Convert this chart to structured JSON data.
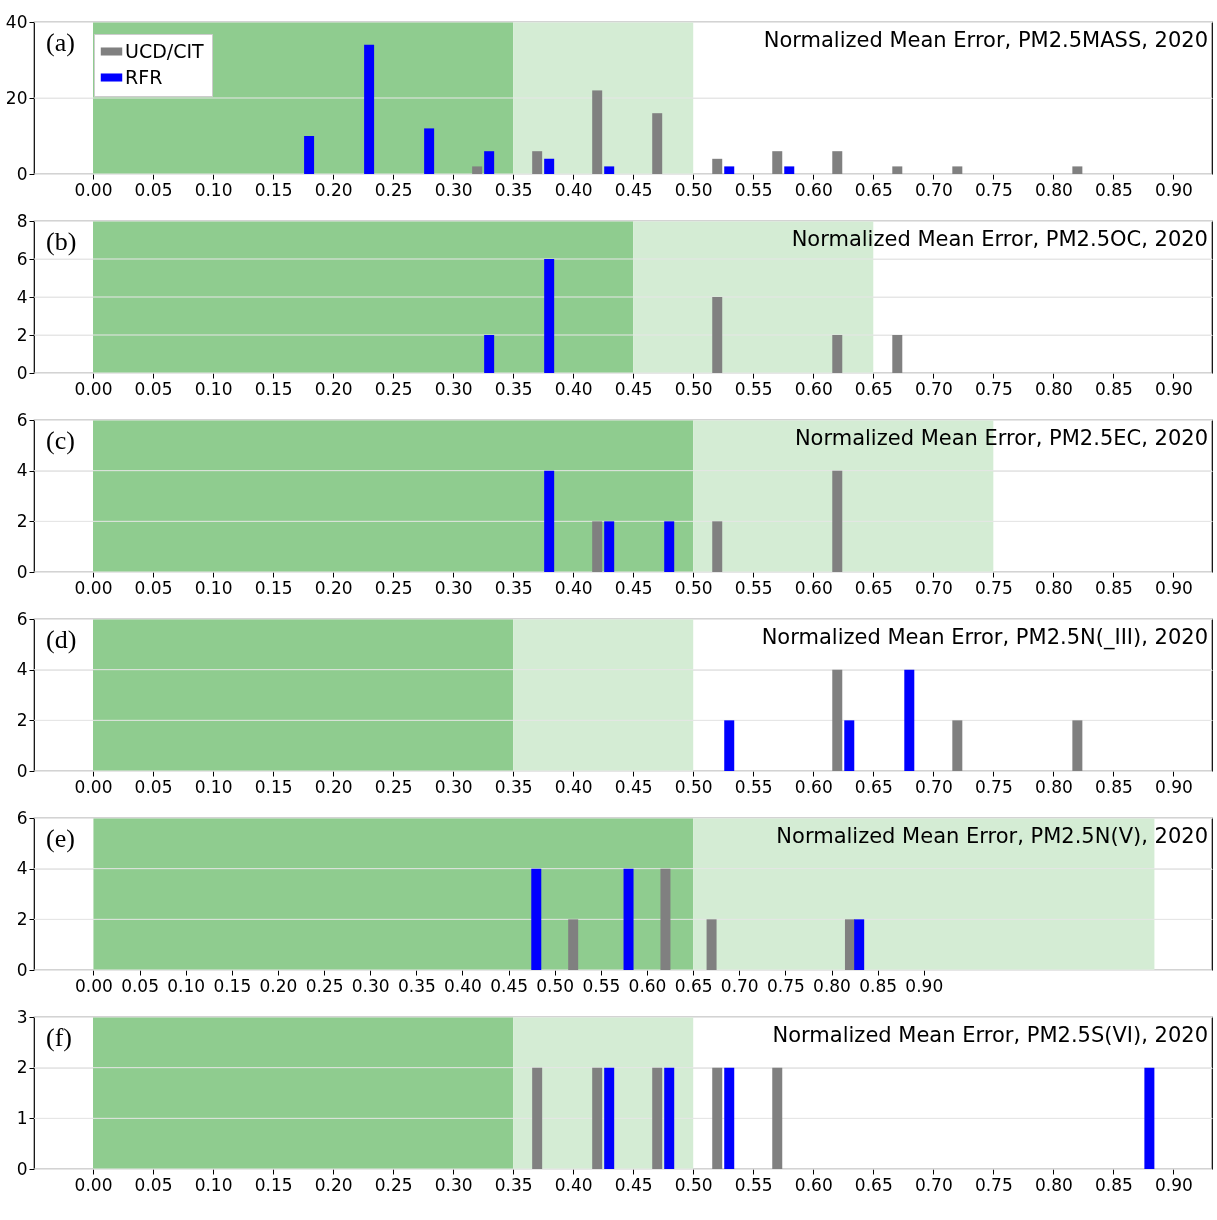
{
  "chart_data": [
    {
      "type": "bar",
      "title": "Normalized Mean Error, PM2.5MASS, 2020",
      "annotations": [
        "(a)"
      ],
      "legend": "top left",
      "grid": "y",
      "xlim": [
        -0.045,
        0.928
      ],
      "ylim": [
        0,
        40
      ],
      "yticks": [
        0,
        20,
        40
      ],
      "xticks": [
        {
          "value": 0,
          "label": "0.00"
        },
        0.05,
        {
          "value": 0.1,
          "label": "0.10"
        },
        0.15,
        {
          "value": 0.2,
          "label": "0.20"
        },
        0.25,
        {
          "value": 0.3,
          "label": "0.30"
        },
        0.35,
        {
          "value": 0.4,
          "label": "0.40"
        },
        0.45,
        {
          "value": 0.5,
          "label": "0.50"
        },
        0.55,
        {
          "value": 0.6,
          "label": "0.60"
        },
        0.65,
        {
          "value": 0.7,
          "label": "0.70"
        },
        0.75,
        {
          "value": 0.8,
          "label": "0.80"
        },
        0.85,
        {
          "value": 0.9,
          "label": "0.90"
        }
      ],
      "bands": [
        {
          "axis": "x",
          "from": 0,
          "to": 0.35,
          "color": "#8fcc8f"
        },
        {
          "axis": "x",
          "from": 0.35,
          "to": 0.5,
          "color": "#d4ecd4"
        }
      ],
      "series": [
        {
          "name": "UCD/CIT",
          "color": "#808080",
          "x": [
            0.32,
            0.37,
            0.42,
            0.47,
            0.52,
            0.57,
            0.62,
            0.67,
            0.72,
            0.82
          ],
          "values": [
            2,
            6,
            22,
            16,
            4,
            6,
            6,
            2,
            2,
            2
          ]
        },
        {
          "name": "RFR",
          "color": "#0000ff",
          "x": [
            0.18,
            0.23,
            0.28,
            0.33,
            0.38,
            0.43,
            0.53,
            0.58
          ],
          "values": [
            10,
            34,
            12,
            6,
            4,
            2,
            2,
            2
          ]
        }
      ]
    },
    {
      "type": "bar",
      "title": "Normalized Mean Error, PM2.5OC, 2020",
      "annotations": [
        "(b)"
      ],
      "grid": "y",
      "xlim": [
        -0.045,
        0.928
      ],
      "ylim": [
        0,
        8
      ],
      "yticks": [
        0,
        2,
        4,
        6,
        8
      ],
      "xticks": [
        {
          "value": 0,
          "label": "0.00"
        },
        0.05,
        {
          "value": 0.1,
          "label": "0.10"
        },
        0.15,
        {
          "value": 0.2,
          "label": "0.20"
        },
        0.25,
        {
          "value": 0.3,
          "label": "0.30"
        },
        0.35,
        {
          "value": 0.4,
          "label": "0.40"
        },
        0.45,
        {
          "value": 0.5,
          "label": "0.50"
        },
        0.55,
        {
          "value": 0.6,
          "label": "0.60"
        },
        0.65,
        {
          "value": 0.7,
          "label": "0.70"
        },
        0.75,
        {
          "value": 0.8,
          "label": "0.80"
        },
        0.85,
        {
          "value": 0.9,
          "label": "0.90"
        }
      ],
      "bands": [
        {
          "axis": "x",
          "from": 0,
          "to": 0.45,
          "color": "#8fcc8f"
        },
        {
          "axis": "x",
          "from": 0.45,
          "to": 0.65,
          "color": "#d4ecd4"
        }
      ],
      "series": [
        {
          "color": "#808080",
          "x": [
            0.52,
            0.62,
            0.67
          ],
          "values": [
            4,
            2,
            2
          ]
        },
        {
          "color": "#0000ff",
          "x": [
            0.33,
            0.38
          ],
          "values": [
            2,
            6
          ]
        }
      ]
    },
    {
      "type": "bar",
      "title": "Normalized Mean Error, PM2.5EC, 2020",
      "annotations": [
        "(c)"
      ],
      "grid": "y",
      "xlim": [
        -0.045,
        0.928
      ],
      "ylim": [
        0,
        6
      ],
      "yticks": [
        0,
        2,
        4,
        6
      ],
      "xticks": [
        {
          "value": 0,
          "label": "0.00"
        },
        0.05,
        {
          "value": 0.1,
          "label": "0.10"
        },
        0.15,
        {
          "value": 0.2,
          "label": "0.20"
        },
        0.25,
        {
          "value": 0.3,
          "label": "0.30"
        },
        0.35,
        {
          "value": 0.4,
          "label": "0.40"
        },
        0.45,
        {
          "value": 0.5,
          "label": "0.50"
        },
        0.55,
        {
          "value": 0.6,
          "label": "0.60"
        },
        0.65,
        {
          "value": 0.7,
          "label": "0.70"
        },
        0.75,
        {
          "value": 0.8,
          "label": "0.80"
        },
        0.85,
        {
          "value": 0.9,
          "label": "0.90"
        }
      ],
      "bands": [
        {
          "axis": "x",
          "from": 0,
          "to": 0.5,
          "color": "#8fcc8f"
        },
        {
          "axis": "x",
          "from": 0.5,
          "to": 0.75,
          "color": "#d4ecd4"
        }
      ],
      "series": [
        {
          "color": "#808080",
          "x": [
            0.42,
            0.52,
            0.62
          ],
          "values": [
            2,
            2,
            4
          ]
        },
        {
          "color": "#0000ff",
          "x": [
            0.38,
            0.43,
            0.48
          ],
          "values": [
            4,
            2,
            2
          ]
        }
      ]
    },
    {
      "type": "bar",
      "title": "Normalized Mean Error, PM2.5N(_III), 2020",
      "annotations": [
        "(d)"
      ],
      "grid": "y",
      "xlim": [
        -0.045,
        0.928
      ],
      "ylim": [
        0,
        6
      ],
      "yticks": [
        0,
        2,
        4,
        6
      ],
      "xticks": [
        {
          "value": 0,
          "label": "0.00"
        },
        0.05,
        {
          "value": 0.1,
          "label": "0.10"
        },
        0.15,
        {
          "value": 0.2,
          "label": "0.20"
        },
        0.25,
        {
          "value": 0.3,
          "label": "0.30"
        },
        0.35,
        {
          "value": 0.4,
          "label": "0.40"
        },
        0.45,
        {
          "value": 0.5,
          "label": "0.50"
        },
        0.55,
        {
          "value": 0.6,
          "label": "0.60"
        },
        0.65,
        {
          "value": 0.7,
          "label": "0.70"
        },
        0.75,
        {
          "value": 0.8,
          "label": "0.80"
        },
        0.85,
        {
          "value": 0.9,
          "label": "0.90"
        }
      ],
      "bands": [
        {
          "axis": "x",
          "from": 0,
          "to": 0.35,
          "color": "#8fcc8f"
        },
        {
          "axis": "x",
          "from": 0.35,
          "to": 0.5,
          "color": "#d4ecd4"
        }
      ],
      "series": [
        {
          "color": "#808080",
          "x": [
            0.62,
            0.72,
            0.82
          ],
          "values": [
            4,
            2,
            2
          ]
        },
        {
          "color": "#0000ff",
          "x": [
            0.53,
            0.63,
            0.68
          ],
          "values": [
            2,
            2,
            4
          ]
        }
      ]
    },
    {
      "type": "bar",
      "title": "Normalized Mean Error, PM2.5N(V), 2020",
      "annotations": [
        "(e)"
      ],
      "grid": "y",
      "xlim": [
        -0.059,
        1.207
      ],
      "ylim": [
        0,
        6
      ],
      "yticks": [
        0,
        2,
        4,
        6
      ],
      "xticks": [
        {
          "value": 0,
          "label": "0.00"
        },
        0.05,
        {
          "value": 0.1,
          "label": "0.10"
        },
        0.15,
        {
          "value": 0.2,
          "label": "0.20"
        },
        0.25,
        {
          "value": 0.3,
          "label": "0.30"
        },
        0.35,
        {
          "value": 0.4,
          "label": "0.40"
        },
        0.45,
        {
          "value": 0.5,
          "label": "0.50"
        },
        0.55,
        {
          "value": 0.6,
          "label": "0.60"
        },
        0.65,
        {
          "value": 0.7,
          "label": "0.70"
        },
        0.75,
        {
          "value": 0.8,
          "label": "0.80"
        },
        0.85,
        {
          "value": 0.9,
          "label": "0.90"
        }
      ],
      "bands": [
        {
          "axis": "x",
          "from": 0,
          "to": 0.65,
          "color": "#8fcc8f"
        },
        {
          "axis": "x",
          "from": 0.65,
          "to": 1.15,
          "color": "#d4ecd4"
        }
      ],
      "series": [
        {
          "color": "#808080",
          "x": [
            0.52,
            0.62,
            0.67,
            0.82
          ],
          "values": [
            2,
            4,
            2,
            2
          ]
        },
        {
          "color": "#0000ff",
          "x": [
            0.48,
            0.58,
            0.83
          ],
          "values": [
            4,
            4,
            2
          ]
        }
      ]
    },
    {
      "type": "bar",
      "title": "Normalized Mean Error, PM2.5S(VI), 2020",
      "annotations": [
        "(f)"
      ],
      "grid": "y",
      "xlim": [
        -0.045,
        0.928
      ],
      "ylim": [
        0,
        3
      ],
      "yticks": [
        0,
        1,
        2,
        3
      ],
      "xticks": [
        {
          "value": 0,
          "label": "0.00"
        },
        0.05,
        {
          "value": 0.1,
          "label": "0.10"
        },
        0.15,
        {
          "value": 0.2,
          "label": "0.20"
        },
        0.25,
        {
          "value": 0.3,
          "label": "0.30"
        },
        0.35,
        {
          "value": 0.4,
          "label": "0.40"
        },
        0.45,
        {
          "value": 0.5,
          "label": "0.50"
        },
        0.55,
        {
          "value": 0.6,
          "label": "0.60"
        },
        0.65,
        {
          "value": 0.7,
          "label": "0.70"
        },
        0.75,
        {
          "value": 0.8,
          "label": "0.80"
        },
        0.85,
        {
          "value": 0.9,
          "label": "0.90"
        }
      ],
      "bands": [
        {
          "axis": "x",
          "from": 0,
          "to": 0.35,
          "color": "#8fcc8f"
        },
        {
          "axis": "x",
          "from": 0.35,
          "to": 0.5,
          "color": "#d4ecd4"
        }
      ],
      "series": [
        {
          "color": "#808080",
          "x": [
            0.37,
            0.42,
            0.47,
            0.52,
            0.57
          ],
          "values": [
            2,
            2,
            2,
            2,
            2
          ]
        },
        {
          "color": "#0000ff",
          "x": [
            0.43,
            0.48,
            0.53,
            0.88
          ],
          "values": [
            2,
            2,
            2,
            2
          ]
        }
      ]
    }
  ]
}
